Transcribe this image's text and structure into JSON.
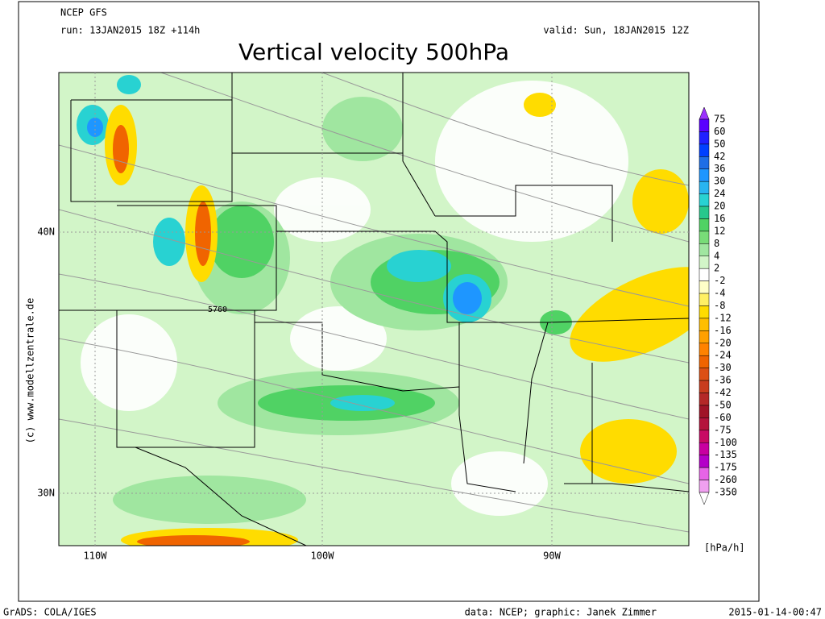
{
  "header": {
    "model": "NCEP GFS",
    "run": "run: 13JAN2015 18Z +114h",
    "valid": "valid: Sun, 18JAN2015 12Z",
    "title": "Vertical velocity 500hPa"
  },
  "map": {
    "lat_labels": [
      "40N",
      "30N"
    ],
    "lon_labels": [
      "110W",
      "100W",
      "90W"
    ],
    "contour_label": "5760",
    "watermark": "(c) www.modellzentrale.de"
  },
  "colorbar": {
    "unit": "[hPa/h]",
    "levels": [
      75,
      60,
      50,
      42,
      36,
      30,
      24,
      20,
      16,
      12,
      8,
      4,
      2,
      -2,
      -4,
      -8,
      -12,
      -16,
      -20,
      -24,
      -30,
      -36,
      -42,
      -50,
      -60,
      -75,
      -100,
      -135,
      -175,
      -260,
      -350
    ],
    "colors": [
      "#9b30ff",
      "#5a00ff",
      "#2020ff",
      "#0040ff",
      "#1e6ee6",
      "#1e96ff",
      "#28b4f0",
      "#28d2d2",
      "#28c88c",
      "#50d264",
      "#78dc78",
      "#a0e6a0",
      "#d2f5c8",
      "#ffffff",
      "#ffffc8",
      "#fff064",
      "#ffdc00",
      "#ffbe00",
      "#ffa000",
      "#ff8200",
      "#f06400",
      "#dc5014",
      "#c83c1e",
      "#b42828",
      "#a01428",
      "#b4143c",
      "#c80a64",
      "#c800a0",
      "#b400c8",
      "#e664e6",
      "#f0a0f0",
      "#ffffff"
    ]
  },
  "footer": {
    "left": "GrADS: COLA/IGES",
    "credit": "data: NCEP; graphic: Janek Zimmer",
    "timestamp": "2015-01-14-00:47"
  }
}
